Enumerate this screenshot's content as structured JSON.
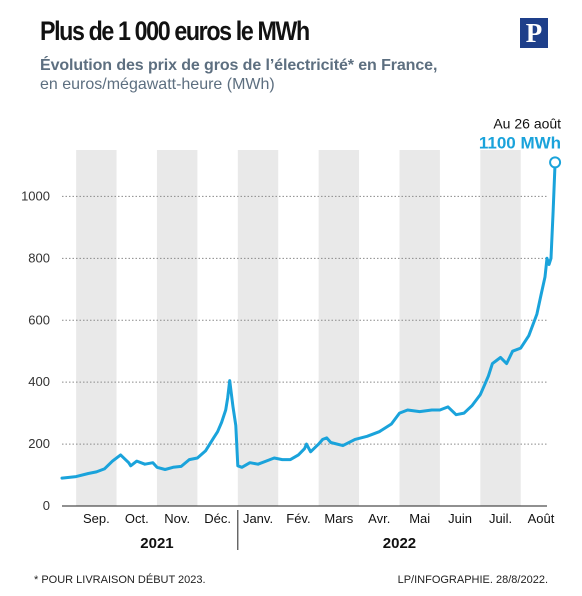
{
  "title": "Plus de 1 000 euros le MWh",
  "subtitle": "Évolution des prix de gros de l’électricité* en France,",
  "unit_line": "en euros/mégawatt-heure (MWh)",
  "logo_letter": "P",
  "footnote": "* POUR LIVRAISON DÉBUT 2023.",
  "credit": "LP/INFOGRAPHIE.  28/8/2022.",
  "colors": {
    "line": "#1aa3db",
    "band": "#e9e9e9",
    "grid": "#8a8a8a",
    "axis": "#222222"
  },
  "chart_data": {
    "type": "line",
    "title": "Plus de 1 000 euros le MWh",
    "ylabel": "en euros/mégawatt-heure (MWh)",
    "ylim": [
      0,
      1150
    ],
    "yticks": [
      0,
      200,
      400,
      600,
      800,
      1000
    ],
    "grid": true,
    "x_note": "x = month index from Sep. 2021 (0 = start of September 2021)",
    "months": [
      "Sep.",
      "Oct.",
      "Nov.",
      "Déc.",
      "Janv.",
      "Fév.",
      "Mars",
      "Avr.",
      "Mai",
      "Juin",
      "Juil.",
      "Août"
    ],
    "years": [
      {
        "label": "2021",
        "start": 0,
        "end": 4
      },
      {
        "label": "2022",
        "start": 4,
        "end": 12
      }
    ],
    "annotation": {
      "date": "Au 26 août",
      "value_text": "1100 MWh",
      "x": 11.85,
      "y": 1110
    },
    "series": [
      {
        "name": "",
        "x": [
          -0.35,
          0.0,
          0.3,
          0.5,
          0.7,
          0.9,
          1.1,
          1.3,
          1.35,
          1.5,
          1.7,
          1.9,
          2.0,
          2.2,
          2.4,
          2.6,
          2.8,
          3.0,
          3.2,
          3.4,
          3.5,
          3.6,
          3.7,
          3.75,
          3.8,
          3.88,
          3.95,
          4.0,
          4.1,
          4.3,
          4.5,
          4.7,
          4.9,
          5.1,
          5.3,
          5.5,
          5.65,
          5.7,
          5.8,
          6.0,
          6.1,
          6.2,
          6.3,
          6.6,
          6.9,
          7.2,
          7.5,
          7.8,
          8.0,
          8.2,
          8.5,
          8.8,
          9.0,
          9.2,
          9.4,
          9.6,
          9.8,
          10.0,
          10.1,
          10.2,
          10.3,
          10.4,
          10.5,
          10.65,
          10.8,
          11.0,
          11.2,
          11.4,
          11.5,
          11.6,
          11.65,
          11.7,
          11.75,
          11.8,
          11.85
        ],
        "values": [
          90,
          95,
          105,
          110,
          120,
          145,
          165,
          140,
          130,
          145,
          135,
          140,
          125,
          118,
          125,
          128,
          150,
          155,
          178,
          220,
          240,
          270,
          310,
          350,
          405,
          320,
          260,
          130,
          125,
          140,
          135,
          145,
          155,
          150,
          150,
          165,
          185,
          200,
          175,
          200,
          215,
          220,
          205,
          195,
          215,
          225,
          240,
          265,
          300,
          310,
          305,
          310,
          310,
          320,
          295,
          300,
          325,
          360,
          390,
          420,
          460,
          470,
          480,
          460,
          500,
          510,
          550,
          620,
          680,
          740,
          800,
          780,
          800,
          950,
          1110
        ]
      }
    ]
  }
}
